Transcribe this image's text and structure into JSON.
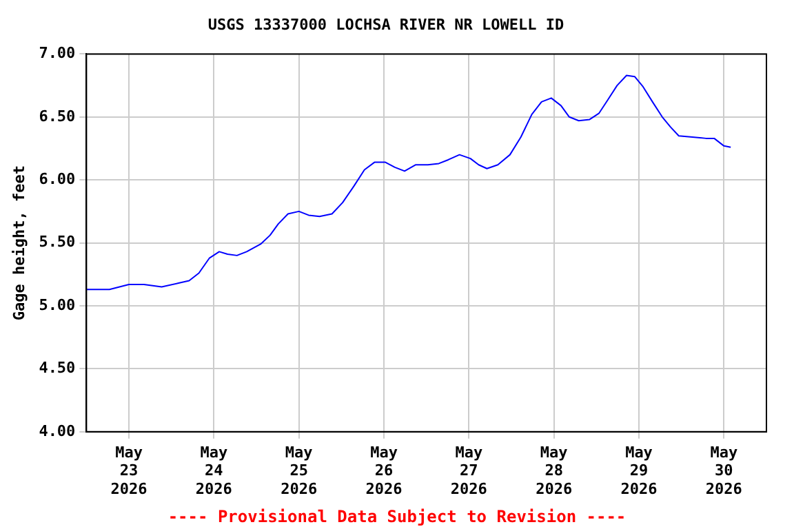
{
  "chart_data": {
    "type": "line",
    "title": "USGS 13337000 LOCHSA RIVER NR LOWELL ID",
    "ylabel": "Gage height, feet",
    "annotations": [
      "---- Provisional Data Subject to Revision ----"
    ],
    "x": [
      "2026-05-22T12:00",
      "2026-05-22T18:30",
      "2026-05-23T00:00",
      "2026-05-23T04:15",
      "2026-05-23T09:15",
      "2026-05-23T14:00",
      "2026-05-23T17:00",
      "2026-05-23T19:45",
      "2026-05-23T22:45",
      "2026-05-24T01:30",
      "2026-05-24T03:50",
      "2026-05-24T06:30",
      "2026-05-24T09:15",
      "2026-05-24T13:10",
      "2026-05-24T15:50",
      "2026-05-24T18:10",
      "2026-05-24T20:55",
      "2026-05-25T00:00",
      "2026-05-25T02:45",
      "2026-05-25T05:50",
      "2026-05-25T09:20",
      "2026-05-25T12:20",
      "2026-05-25T15:30",
      "2026-05-25T18:30",
      "2026-05-25T21:20",
      "2026-05-26T00:25",
      "2026-05-26T03:05",
      "2026-05-26T05:50",
      "2026-05-26T08:55",
      "2026-05-26T12:25",
      "2026-05-26T15:30",
      "2026-05-26T18:10",
      "2026-05-26T21:20",
      "2026-05-27T00:25",
      "2026-05-27T02:45",
      "2026-05-27T05:05",
      "2026-05-27T08:10",
      "2026-05-27T11:35",
      "2026-05-27T14:40",
      "2026-05-27T17:45",
      "2026-05-27T20:30",
      "2026-05-27T23:15",
      "2026-05-28T02:00",
      "2026-05-28T04:20",
      "2026-05-28T07:00",
      "2026-05-28T10:05",
      "2026-05-28T12:45",
      "2026-05-28T15:05",
      "2026-05-28T17:50",
      "2026-05-28T20:30",
      "2026-05-28T22:50",
      "2026-05-29T01:10",
      "2026-05-29T03:50",
      "2026-05-29T06:35",
      "2026-05-29T08:55",
      "2026-05-29T11:15",
      "2026-05-29T15:05",
      "2026-05-29T18:55",
      "2026-05-29T21:15",
      "2026-05-30T00:00",
      "2026-05-30T01:55"
    ],
    "series": [
      {
        "color": "#0000ff",
        "values": [
          5.13,
          5.13,
          5.17,
          5.17,
          5.15,
          5.18,
          5.2,
          5.26,
          5.38,
          5.43,
          5.41,
          5.4,
          5.43,
          5.49,
          5.56,
          5.65,
          5.73,
          5.75,
          5.72,
          5.71,
          5.73,
          5.82,
          5.95,
          6.08,
          6.14,
          6.14,
          6.1,
          6.07,
          6.12,
          6.12,
          6.13,
          6.16,
          6.2,
          6.17,
          6.12,
          6.09,
          6.12,
          6.2,
          6.34,
          6.52,
          6.62,
          6.65,
          6.59,
          6.5,
          6.47,
          6.48,
          6.53,
          6.63,
          6.75,
          6.83,
          6.82,
          6.74,
          6.62,
          6.5,
          6.42,
          6.35,
          6.34,
          6.33,
          6.33,
          6.27,
          6.26
        ]
      }
    ],
    "xlim": [
      "2026-05-22T12:00",
      "2026-05-30T12:00"
    ],
    "xticks": [
      {
        "value": "2026-05-23T00:00",
        "label": "May\n23\n2026"
      },
      {
        "value": "2026-05-24T00:00",
        "label": "May\n24\n2026"
      },
      {
        "value": "2026-05-25T00:00",
        "label": "May\n25\n2026"
      },
      {
        "value": "2026-05-26T00:00",
        "label": "May\n26\n2026"
      },
      {
        "value": "2026-05-27T00:00",
        "label": "May\n27\n2026"
      },
      {
        "value": "2026-05-28T00:00",
        "label": "May\n28\n2026"
      },
      {
        "value": "2026-05-29T00:00",
        "label": "May\n29\n2026"
      },
      {
        "value": "2026-05-30T00:00",
        "label": "May\n30\n2026"
      }
    ],
    "ylim": [
      4,
      7
    ],
    "yticks": [
      {
        "value": 4,
        "label": "4.00"
      },
      {
        "value": 4.5,
        "label": "4.50"
      },
      {
        "value": 5,
        "label": "5.00"
      },
      {
        "value": 5.5,
        "label": "5.50"
      },
      {
        "value": 6,
        "label": "6.00"
      },
      {
        "value": 6.5,
        "label": "6.50"
      },
      {
        "value": 7,
        "label": "7.00"
      }
    ],
    "grid": true,
    "legend": false,
    "marker": "none",
    "line_style": "solid"
  }
}
